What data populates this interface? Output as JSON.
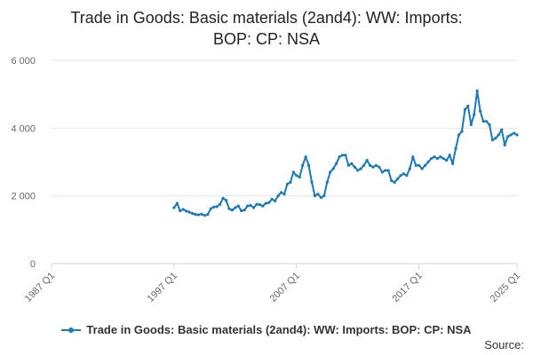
{
  "title_line1": "Trade in Goods: Basic materials (2and4): WW: Imports:",
  "title_line2": "BOP: CP: NSA",
  "source_label": "Source:",
  "colors": {
    "series": "#1a7ab5",
    "grid": "#e6e6e6",
    "axis": "#ccd6eb",
    "tick_text": "#666666"
  },
  "chart_data": {
    "type": "line",
    "title": "Trade in Goods: Basic materials (2and4): WW: Imports: BOP: CP: NSA",
    "xlabel": "",
    "ylabel": "",
    "x_ticks": [
      "1987 Q1",
      "1997 Q1",
      "2007 Q1",
      "2017 Q1",
      "2025 Q1"
    ],
    "y_ticks": [
      {
        "value": 0,
        "label": "0"
      },
      {
        "value": 2000,
        "label": "2 000"
      },
      {
        "value": 4000,
        "label": "4 000"
      },
      {
        "value": 6000,
        "label": "6 000"
      }
    ],
    "xlim": [
      "1987 Q1",
      "2025 Q1"
    ],
    "ylim": [
      0,
      6000
    ],
    "grid": true,
    "legend_position": "bottom",
    "series": [
      {
        "name": "Trade in Goods: Basic materials (2and4): WW: Imports: BOP: CP: NSA",
        "color": "#1a7ab5",
        "x": [
          "1997 Q1",
          "1997 Q2",
          "1997 Q3",
          "1997 Q4",
          "1998 Q1",
          "1998 Q2",
          "1998 Q3",
          "1998 Q4",
          "1999 Q1",
          "1999 Q2",
          "1999 Q3",
          "1999 Q4",
          "2000 Q1",
          "2000 Q2",
          "2000 Q3",
          "2000 Q4",
          "2001 Q1",
          "2001 Q2",
          "2001 Q3",
          "2001 Q4",
          "2002 Q1",
          "2002 Q2",
          "2002 Q3",
          "2002 Q4",
          "2003 Q1",
          "2003 Q2",
          "2003 Q3",
          "2003 Q4",
          "2004 Q1",
          "2004 Q2",
          "2004 Q3",
          "2004 Q4",
          "2005 Q1",
          "2005 Q2",
          "2005 Q3",
          "2005 Q4",
          "2006 Q1",
          "2006 Q2",
          "2006 Q3",
          "2006 Q4",
          "2007 Q1",
          "2007 Q2",
          "2007 Q3",
          "2007 Q4",
          "2008 Q1",
          "2008 Q2",
          "2008 Q3",
          "2008 Q4",
          "2009 Q1",
          "2009 Q2",
          "2009 Q3",
          "2009 Q4",
          "2010 Q1",
          "2010 Q2",
          "2010 Q3",
          "2010 Q4",
          "2011 Q1",
          "2011 Q2",
          "2011 Q3",
          "2011 Q4",
          "2012 Q1",
          "2012 Q2",
          "2012 Q3",
          "2012 Q4",
          "2013 Q1",
          "2013 Q2",
          "2013 Q3",
          "2013 Q4",
          "2014 Q1",
          "2014 Q2",
          "2014 Q3",
          "2014 Q4",
          "2015 Q1",
          "2015 Q2",
          "2015 Q3",
          "2015 Q4",
          "2016 Q1",
          "2016 Q2",
          "2016 Q3",
          "2016 Q4",
          "2017 Q1",
          "2017 Q2",
          "2017 Q3",
          "2017 Q4",
          "2018 Q1",
          "2018 Q2",
          "2018 Q3",
          "2018 Q4",
          "2019 Q1",
          "2019 Q2",
          "2019 Q3",
          "2019 Q4",
          "2020 Q1",
          "2020 Q2",
          "2020 Q3",
          "2020 Q4",
          "2021 Q1",
          "2021 Q2",
          "2021 Q3",
          "2021 Q4",
          "2022 Q1",
          "2022 Q2",
          "2022 Q3",
          "2022 Q4",
          "2023 Q1",
          "2023 Q2",
          "2023 Q3",
          "2023 Q4",
          "2024 Q1",
          "2024 Q2",
          "2024 Q3",
          "2024 Q4",
          "2025 Q1"
        ],
        "values": [
          1650,
          1780,
          1560,
          1600,
          1550,
          1520,
          1480,
          1450,
          1440,
          1460,
          1420,
          1450,
          1620,
          1670,
          1680,
          1750,
          1930,
          1870,
          1620,
          1580,
          1650,
          1700,
          1560,
          1580,
          1700,
          1720,
          1650,
          1750,
          1740,
          1700,
          1780,
          1800,
          1900,
          1850,
          2000,
          2100,
          2050,
          2350,
          2400,
          2700,
          2600,
          2550,
          2900,
          3150,
          2900,
          2400,
          2000,
          2050,
          1950,
          2000,
          2400,
          2700,
          2800,
          2950,
          3150,
          3200,
          3200,
          2900,
          2950,
          2850,
          2750,
          2800,
          2900,
          3050,
          2900,
          2850,
          2900,
          2850,
          2700,
          2750,
          2750,
          2450,
          2400,
          2500,
          2600,
          2650,
          2600,
          2800,
          3150,
          2900,
          2900,
          2800,
          2900,
          3000,
          3100,
          3150,
          3100,
          3150,
          3100,
          3050,
          3200,
          2950,
          3400,
          3800,
          3900,
          4550,
          4650,
          4100,
          4400,
          5100,
          4500,
          4200,
          4200,
          4100,
          3650,
          3700,
          3800,
          3950,
          3500,
          3750,
          3800,
          3850,
          3800
        ]
      }
    ]
  }
}
